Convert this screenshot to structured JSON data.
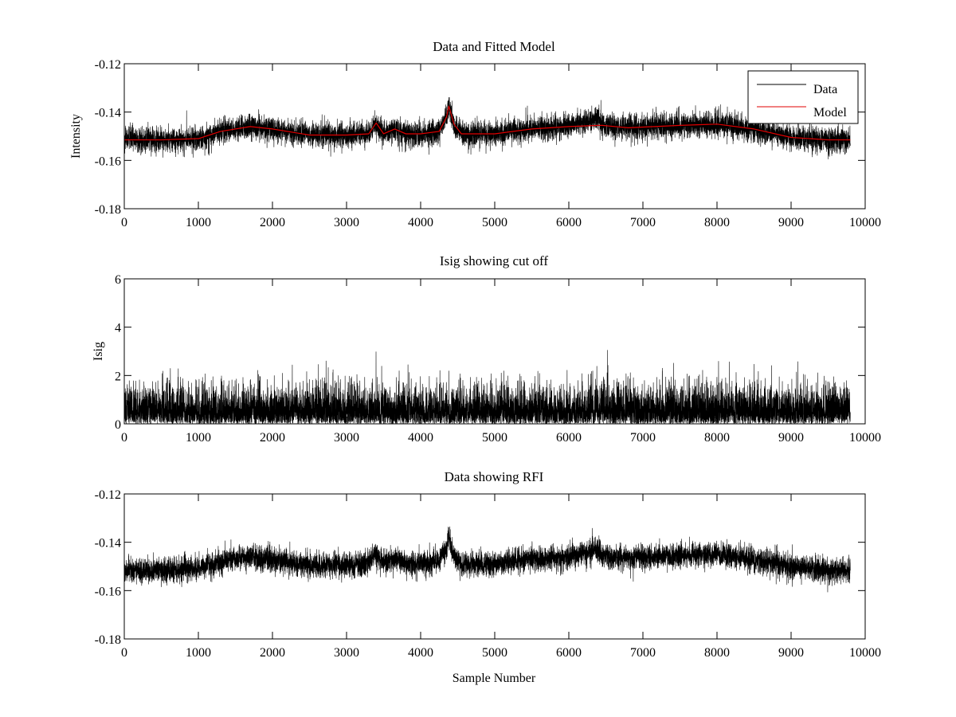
{
  "figure": {
    "background": "#ffffff",
    "axis_color": "#000000"
  },
  "chart_data": [
    {
      "type": "line",
      "title": "Data and Fitted Model",
      "xlabel": "",
      "ylabel": "Intensity",
      "xlim": [
        0,
        10000
      ],
      "ylim": [
        -0.18,
        -0.12
      ],
      "xticks": [
        0,
        1000,
        2000,
        3000,
        4000,
        5000,
        6000,
        7000,
        8000,
        9000,
        10000
      ],
      "xtick_labels": [
        "0",
        "1000",
        "2000",
        "3000",
        "4000",
        "5000",
        "6000",
        "7000",
        "8000",
        "9000",
        "10000"
      ],
      "yticks": [
        -0.18,
        -0.16,
        -0.14,
        -0.12
      ],
      "ytick_labels": [
        "-0.18",
        "-0.16",
        "-0.14",
        "-0.12"
      ],
      "legend": {
        "position": "top-right",
        "entries": [
          "Data",
          "Model"
        ]
      },
      "grid": false,
      "series": [
        {
          "name": "Data",
          "color": "#000000",
          "kind": "noisy",
          "n_points": 9800,
          "noise": 0.0045,
          "peaks": [
            [
              4380,
              0.0185
            ]
          ],
          "x": [
            0,
            500,
            1000,
            1300,
            1700,
            2000,
            2500,
            3000,
            3300,
            3400,
            3500,
            3650,
            3800,
            4000,
            4250,
            4350,
            4380,
            4450,
            4550,
            5000,
            5500,
            6000,
            6400,
            6450,
            6800,
            7500,
            8000,
            8500,
            9000,
            9500,
            9800
          ],
          "values": [
            -0.1515,
            -0.1515,
            -0.151,
            -0.148,
            -0.146,
            -0.147,
            -0.1495,
            -0.1495,
            -0.149,
            -0.1445,
            -0.149,
            -0.147,
            -0.149,
            -0.149,
            -0.148,
            -0.142,
            -0.1375,
            -0.145,
            -0.149,
            -0.149,
            -0.147,
            -0.146,
            -0.143,
            -0.1455,
            -0.1465,
            -0.1455,
            -0.145,
            -0.147,
            -0.1505,
            -0.1515,
            -0.1515
          ]
        },
        {
          "name": "Model",
          "color": "#e00000",
          "kind": "line",
          "x": [
            0,
            500,
            1000,
            1300,
            1700,
            2000,
            2500,
            3000,
            3300,
            3400,
            3500,
            3650,
            3800,
            4000,
            4250,
            4350,
            4380,
            4450,
            4550,
            5000,
            5500,
            6000,
            6400,
            6450,
            6800,
            7500,
            8000,
            8500,
            9000,
            9500,
            9800
          ],
          "values": [
            -0.1515,
            -0.1515,
            -0.151,
            -0.148,
            -0.146,
            -0.147,
            -0.1495,
            -0.1495,
            -0.149,
            -0.1445,
            -0.149,
            -0.147,
            -0.149,
            -0.149,
            -0.148,
            -0.142,
            -0.1375,
            -0.145,
            -0.149,
            -0.149,
            -0.147,
            -0.146,
            -0.1455,
            -0.1455,
            -0.1465,
            -0.1455,
            -0.145,
            -0.147,
            -0.1505,
            -0.1515,
            -0.1515
          ]
        }
      ]
    },
    {
      "type": "line",
      "title": "Isig showing cut off",
      "xlabel": "",
      "ylabel": "Isig",
      "xlim": [
        0,
        10000
      ],
      "ylim": [
        0,
        6
      ],
      "xticks": [
        0,
        1000,
        2000,
        3000,
        4000,
        5000,
        6000,
        7000,
        8000,
        9000,
        10000
      ],
      "xtick_labels": [
        "0",
        "1000",
        "2000",
        "3000",
        "4000",
        "5000",
        "6000",
        "7000",
        "8000",
        "9000",
        "10000"
      ],
      "yticks": [
        0,
        2,
        4,
        6
      ],
      "ytick_labels": [
        "0",
        "2",
        "4",
        "6"
      ],
      "grid": false,
      "series": [
        {
          "color": "#000000",
          "kind": "absnoise",
          "n_points": 9800,
          "typical_max": 2.5,
          "max_value": 3.5
        }
      ]
    },
    {
      "type": "line",
      "title": "Data showing RFI",
      "xlabel": "Sample Number",
      "ylabel": "",
      "xlim": [
        0,
        10000
      ],
      "ylim": [
        -0.18,
        -0.12
      ],
      "xticks": [
        0,
        1000,
        2000,
        3000,
        4000,
        5000,
        6000,
        7000,
        8000,
        9000,
        10000
      ],
      "xtick_labels": [
        "0",
        "1000",
        "2000",
        "3000",
        "4000",
        "5000",
        "6000",
        "7000",
        "8000",
        "9000",
        "10000"
      ],
      "yticks": [
        -0.18,
        -0.16,
        -0.14,
        -0.12
      ],
      "ytick_labels": [
        "-0.18",
        "-0.16",
        "-0.14",
        "-0.12"
      ],
      "grid": false,
      "series": [
        {
          "color": "#000000",
          "kind": "noisy",
          "n_points": 9800,
          "noise": 0.0045,
          "peaks": [
            [
              4380,
              0.0185
            ]
          ],
          "x": [
            0,
            500,
            1000,
            1300,
            1700,
            2000,
            2500,
            3000,
            3300,
            3400,
            3500,
            3650,
            3800,
            4000,
            4250,
            4350,
            4380,
            4450,
            4550,
            5000,
            5500,
            6000,
            6400,
            6450,
            6800,
            7500,
            8000,
            8500,
            9000,
            9500,
            9800
          ],
          "values": [
            -0.1515,
            -0.1515,
            -0.151,
            -0.148,
            -0.146,
            -0.147,
            -0.1495,
            -0.1495,
            -0.149,
            -0.1445,
            -0.149,
            -0.147,
            -0.149,
            -0.149,
            -0.148,
            -0.142,
            -0.1375,
            -0.145,
            -0.149,
            -0.149,
            -0.147,
            -0.146,
            -0.143,
            -0.1455,
            -0.1465,
            -0.1455,
            -0.145,
            -0.147,
            -0.1505,
            -0.1515,
            -0.1515
          ]
        }
      ]
    }
  ]
}
